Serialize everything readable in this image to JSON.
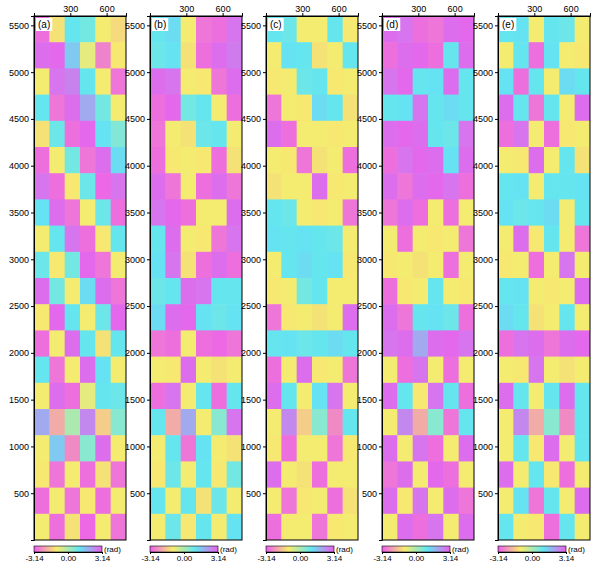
{
  "chart_data": [
    {
      "type": "heatmap",
      "title": "(a)",
      "xlim": [
        0,
        760
      ],
      "xticks": [
        300,
        600
      ],
      "ylim": [
        0,
        5600
      ],
      "yticks": [
        500,
        1000,
        1500,
        2000,
        2500,
        3000,
        3500,
        4000,
        4500,
        5000,
        5500
      ],
      "colorbar": {
        "range": [
          -3.14,
          3.14
        ],
        "ticks": [
          -3.14,
          {
            "value": 0,
            "label": "0.00"
          },
          3.14
        ],
        "label": "(rad)"
      },
      "cells": [
        [
          -2.9,
          -1.2,
          1.0,
          0.8,
          -1.0,
          -1.3
        ],
        [
          2.9,
          3.0,
          1.5,
          -0.8,
          -2.6,
          -1.1
        ],
        [
          -1.0,
          2.8,
          2.6,
          1.0,
          -1.0,
          -2.8
        ],
        [
          1.0,
          -2.8,
          2.9,
          2.0,
          0.8,
          -1.0
        ],
        [
          -1.2,
          0.9,
          -2.9,
          3.0,
          1.1,
          0.6
        ],
        [
          -2.9,
          -1.0,
          0.8,
          -2.8,
          2.9,
          1.2
        ],
        [
          2.8,
          -2.9,
          -1.1,
          0.9,
          -3.0,
          2.8
        ],
        [
          1.1,
          2.9,
          -2.8,
          -1.0,
          0.9,
          -2.9
        ],
        [
          -1.0,
          1.0,
          2.8,
          -2.9,
          -1.1,
          1.0
        ],
        [
          0.9,
          -1.1,
          0.8,
          3.0,
          -2.8,
          -1.0
        ],
        [
          2.9,
          0.8,
          -1.0,
          1.2,
          2.9,
          -2.8
        ],
        [
          -1.1,
          3.0,
          1.0,
          -1.0,
          0.9,
          3.0
        ],
        [
          -2.9,
          -1.0,
          2.9,
          1.0,
          -1.2,
          1.0
        ],
        [
          1.0,
          -2.8,
          -1.0,
          2.9,
          1.1,
          -1.0
        ],
        [
          -1.0,
          2.9,
          -2.9,
          -0.8,
          1.0,
          0.9
        ],
        [
          2.0,
          -2.0,
          0.0,
          2.5,
          -1.5,
          0.5
        ],
        [
          -1.0,
          1.5,
          -2.5,
          0.5,
          2.9,
          -1.0
        ],
        [
          -1.1,
          -2.8,
          -1.0,
          -2.9,
          -1.2,
          -2.8
        ],
        [
          -2.9,
          -1.0,
          -2.8,
          -1.1,
          -2.9,
          -1.0
        ],
        [
          -1.0,
          -2.9,
          -1.2,
          -3.0,
          -1.0,
          -2.8
        ]
      ]
    },
    {
      "type": "heatmap",
      "title": "(b)",
      "xlim": [
        0,
        760
      ],
      "xticks": [
        300,
        600
      ],
      "ylim": [
        0,
        5600
      ],
      "yticks": [
        500,
        1000,
        1500,
        2000,
        2500,
        3000,
        3500,
        4000,
        4500,
        5000,
        5500
      ],
      "colorbar": {
        "range": [
          -3.14,
          3.14
        ],
        "ticks": [
          -3.14,
          {
            "value": 0,
            "label": "0.00"
          },
          3.14
        ],
        "label": "(rad)"
      },
      "cells": [
        [
          1.0,
          1.2,
          -1.0,
          -2.8,
          -2.9,
          2.8
        ],
        [
          0.9,
          1.1,
          -1.2,
          -2.9,
          2.9,
          2.7
        ],
        [
          2.9,
          2.8,
          -1.0,
          -1.1,
          -2.8,
          2.9
        ],
        [
          -2.9,
          3.0,
          0.8,
          1.0,
          -1.0,
          -2.9
        ],
        [
          -2.8,
          -1.0,
          -1.2,
          0.9,
          1.0,
          -1.0
        ],
        [
          -2.9,
          -1.1,
          -1.0,
          -1.1,
          -2.9,
          -1.2
        ],
        [
          2.9,
          -2.8,
          -1.0,
          -2.9,
          2.9,
          -2.8
        ],
        [
          2.8,
          3.0,
          -2.9,
          -1.0,
          -1.0,
          2.9
        ],
        [
          1.0,
          2.9,
          -1.0,
          -1.1,
          -2.8,
          2.8
        ],
        [
          1.1,
          2.8,
          -1.2,
          -2.9,
          2.9,
          -2.9
        ],
        [
          0.9,
          1.0,
          2.9,
          2.8,
          1.0,
          1.0
        ],
        [
          1.2,
          2.9,
          3.0,
          1.1,
          0.9,
          1.1
        ],
        [
          -2.8,
          -2.9,
          -1.0,
          -2.9,
          -3.0,
          -2.8
        ],
        [
          -1.0,
          -1.1,
          2.9,
          -1.0,
          -1.2,
          -1.0
        ],
        [
          -2.9,
          2.8,
          -1.0,
          1.0,
          -2.9,
          1.0
        ],
        [
          1.0,
          -2.0,
          2.0,
          -1.0,
          0.5,
          2.8
        ],
        [
          -1.0,
          1.0,
          -2.8,
          1.1,
          -1.0,
          -1.2
        ],
        [
          -1.1,
          0.9,
          -1.0,
          1.0,
          -1.1,
          0.8
        ],
        [
          1.0,
          -1.0,
          1.0,
          -1.2,
          0.9,
          -1.0
        ],
        [
          -1.0,
          0.9,
          -1.1,
          1.0,
          -1.0,
          1.1
        ]
      ]
    },
    {
      "type": "heatmap",
      "title": "(c)",
      "xlim": [
        0,
        760
      ],
      "xticks": [
        300,
        600
      ],
      "ylim": [
        0,
        5600
      ],
      "yticks": [
        500,
        1000,
        1500,
        2000,
        2500,
        3000,
        3500,
        4000,
        4500,
        5000,
        5500
      ],
      "colorbar": {
        "range": [
          -3.14,
          3.14
        ],
        "ticks": [
          -3.14,
          {
            "value": 0,
            "label": "0.00"
          },
          3.14
        ],
        "label": "(rad)"
      },
      "cells": [
        [
          1.0,
          0.9,
          -1.0,
          -1.0,
          1.0,
          -1.1
        ],
        [
          -1.0,
          1.1,
          1.0,
          -1.2,
          -1.0,
          1.0
        ],
        [
          -1.1,
          -1.0,
          0.9,
          1.0,
          -1.1,
          -1.0
        ],
        [
          -2.8,
          -1.0,
          -1.1,
          1.2,
          1.0,
          -1.2
        ],
        [
          2.9,
          -2.9,
          -1.0,
          -1.0,
          -1.1,
          -1.0
        ],
        [
          -1.0,
          -1.1,
          -2.8,
          -1.2,
          -1.0,
          -2.9
        ],
        [
          -1.2,
          -1.0,
          -1.0,
          2.9,
          -1.1,
          -1.0
        ],
        [
          1.0,
          0.9,
          -1.0,
          -1.1,
          -1.0,
          -2.8
        ],
        [
          1.1,
          1.0,
          1.1,
          1.0,
          0.9,
          -1.0
        ],
        [
          -1.0,
          1.0,
          1.2,
          1.0,
          1.1,
          -1.1
        ],
        [
          -1.1,
          -1.0,
          0.8,
          1.0,
          -1.0,
          -1.0
        ],
        [
          -2.8,
          -1.1,
          -1.0,
          -1.2,
          -1.0,
          2.9
        ],
        [
          1.0,
          1.1,
          0.9,
          1.0,
          1.2,
          1.0
        ],
        [
          -2.9,
          -1.0,
          2.9,
          -1.1,
          -1.0,
          -2.8
        ],
        [
          2.9,
          1.0,
          -1.0,
          1.1,
          2.8,
          -1.0
        ],
        [
          -1.0,
          2.5,
          -1.5,
          0.5,
          -2.5,
          1.0
        ],
        [
          -1.1,
          -2.9,
          -1.0,
          -1.0,
          -2.8,
          -1.1
        ],
        [
          2.9,
          -1.0,
          -1.2,
          -2.9,
          -1.0,
          -1.0
        ],
        [
          -1.0,
          -2.8,
          -1.1,
          -1.0,
          -2.9,
          -1.2
        ],
        [
          -2.9,
          -1.0,
          -1.0,
          -2.8,
          -1.1,
          -1.0
        ]
      ]
    },
    {
      "type": "heatmap",
      "title": "(d)",
      "xlim": [
        0,
        760
      ],
      "xticks": [
        300,
        600
      ],
      "ylim": [
        0,
        5600
      ],
      "yticks": [
        500,
        1000,
        1500,
        2000,
        2500,
        3000,
        3500,
        4000,
        4500,
        5000,
        5500
      ],
      "colorbar": {
        "range": [
          -3.14,
          3.14
        ],
        "ticks": [
          -3.14,
          {
            "value": 0,
            "label": "0.00"
          },
          3.14
        ],
        "label": "(rad)"
      },
      "cells": [
        [
          2.9,
          2.8,
          -2.9,
          -2.8,
          2.9,
          3.0
        ],
        [
          -2.9,
          2.9,
          3.0,
          -2.9,
          1.0,
          2.9
        ],
        [
          2.8,
          3.0,
          1.0,
          1.1,
          2.9,
          1.0
        ],
        [
          1.0,
          1.1,
          2.8,
          1.0,
          1.2,
          1.0
        ],
        [
          2.9,
          3.0,
          2.9,
          1.0,
          0.9,
          2.8
        ],
        [
          -2.9,
          2.8,
          3.0,
          2.9,
          1.1,
          2.9
        ],
        [
          2.9,
          -2.8,
          2.9,
          3.0,
          2.8,
          -2.9
        ],
        [
          -2.8,
          2.9,
          -2.9,
          -1.0,
          -2.9,
          -1.0
        ],
        [
          -1.0,
          -2.9,
          -1.0,
          -1.1,
          -1.0,
          -2.8
        ],
        [
          -1.1,
          -1.0,
          -1.2,
          -1.0,
          -2.9,
          -1.0
        ],
        [
          -2.9,
          -1.1,
          -1.0,
          1.0,
          -1.0,
          -1.1
        ],
        [
          2.9,
          -2.8,
          1.0,
          1.1,
          0.9,
          -2.9
        ],
        [
          2.8,
          2.9,
          2.0,
          2.9,
          3.0,
          2.8
        ],
        [
          -1.0,
          -2.9,
          2.8,
          -1.0,
          -2.9,
          -1.0
        ],
        [
          2.9,
          1.0,
          -1.1,
          2.8,
          1.0,
          -2.9
        ],
        [
          -1.0,
          2.5,
          -2.0,
          0.5,
          -2.8,
          1.0
        ],
        [
          2.9,
          -1.0,
          2.8,
          -2.9,
          -1.0,
          2.9
        ],
        [
          -2.8,
          2.9,
          -1.0,
          3.0,
          -2.9,
          -1.0
        ],
        [
          2.9,
          -1.1,
          2.8,
          -1.0,
          2.9,
          -2.8
        ],
        [
          -1.0,
          2.9,
          -2.9,
          2.8,
          -1.0,
          2.9
        ]
      ]
    },
    {
      "type": "heatmap",
      "title": "(e)",
      "xlim": [
        0,
        760
      ],
      "xticks": [
        300,
        600
      ],
      "ylim": [
        0,
        5600
      ],
      "yticks": [
        500,
        1000,
        1500,
        2000,
        2500,
        3000,
        3500,
        4000,
        4500,
        5000,
        5500
      ],
      "colorbar": {
        "range": [
          -3.14,
          3.14
        ],
        "ticks": [
          -3.14,
          {
            "value": 0,
            "label": "0.00"
          },
          3.14
        ],
        "label": "(rad)"
      },
      "cells": [
        [
          1.0,
          1.1,
          -1.0,
          1.0,
          0.9,
          -1.0
        ],
        [
          -1.0,
          1.0,
          -2.9,
          1.1,
          -1.0,
          -1.1
        ],
        [
          1.1,
          -2.9,
          1.0,
          -1.0,
          1.2,
          1.0
        ],
        [
          2.9,
          1.0,
          -2.8,
          1.0,
          -1.0,
          2.9
        ],
        [
          -2.9,
          2.8,
          -1.0,
          -2.9,
          -1.1,
          -1.0
        ],
        [
          -1.0,
          -1.1,
          2.9,
          -1.0,
          1.0,
          -1.2
        ],
        [
          1.0,
          1.1,
          -1.0,
          1.0,
          1.0,
          1.1
        ],
        [
          1.1,
          0.9,
          1.0,
          1.2,
          -1.0,
          1.0
        ],
        [
          -1.0,
          2.9,
          -1.1,
          1.0,
          -1.0,
          -2.8
        ],
        [
          -1.1,
          -1.0,
          -2.9,
          -1.0,
          2.8,
          -1.0
        ],
        [
          1.0,
          1.1,
          -1.0,
          -1.1,
          -1.0,
          2.9
        ],
        [
          1.2,
          1.0,
          -1.2,
          -1.0,
          1.0,
          -1.0
        ],
        [
          -2.9,
          2.8,
          2.9,
          -2.8,
          2.9,
          3.0
        ],
        [
          -1.0,
          -1.1,
          2.8,
          -1.0,
          -1.2,
          -1.0
        ],
        [
          2.9,
          1.0,
          -1.0,
          1.0,
          2.9,
          1.0
        ],
        [
          -1.0,
          2.5,
          -2.0,
          0.5,
          -2.5,
          1.0
        ],
        [
          -1.0,
          1.0,
          -1.1,
          2.9,
          -1.0,
          1.0
        ],
        [
          2.9,
          -1.0,
          1.0,
          -1.1,
          -2.9,
          -1.0
        ],
        [
          -1.0,
          1.1,
          -2.8,
          1.0,
          -1.0,
          2.9
        ],
        [
          1.0,
          -1.0,
          -1.1,
          -2.9,
          1.0,
          -1.0
        ]
      ]
    }
  ]
}
